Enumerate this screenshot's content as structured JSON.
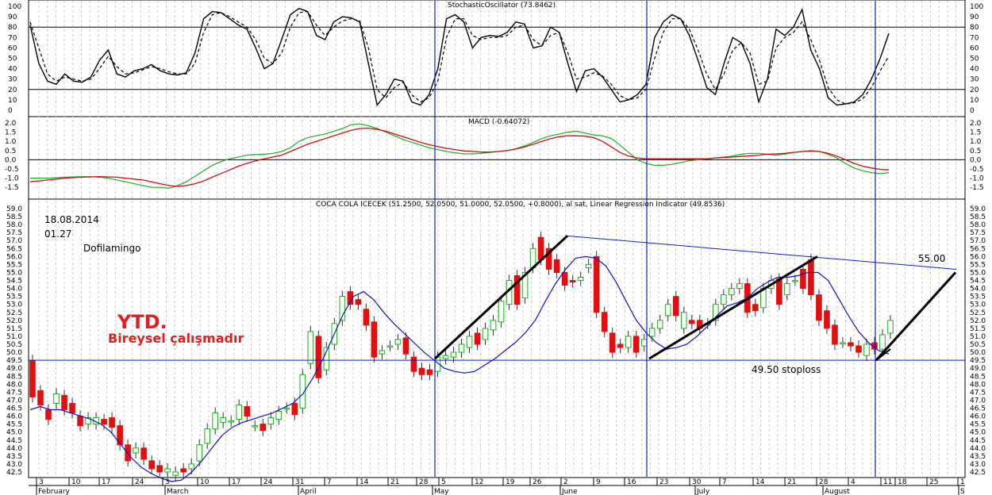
{
  "panels": {
    "stochastic": {
      "title": "StochasticOscillator (73.8462)",
      "ticks": [
        "100",
        "90",
        "80",
        "70",
        "60",
        "50",
        "40",
        "30",
        "20",
        "10",
        "0"
      ]
    },
    "macd": {
      "title": "MACD (-0.64072)",
      "ticks": [
        "2.0",
        "1.5",
        "1.0",
        "0.5",
        "0.0",
        "-0.5",
        "-1.0",
        "-1.5"
      ]
    },
    "price": {
      "title": "COCA COLA ICECEK (51.2500, 52.0500, 51.0000, 52.0500, +0.8000), al sat, Linear Regression Indicator (49.8536)",
      "ticks": [
        "59.0",
        "58.5",
        "58.0",
        "57.5",
        "57.0",
        "56.5",
        "56.0",
        "55.5",
        "55.0",
        "54.5",
        "54.0",
        "53.5",
        "53.0",
        "52.5",
        "52.0",
        "51.5",
        "51.0",
        "50.5",
        "50.0",
        "49.5",
        "49.0",
        "48.5",
        "48.0",
        "47.5",
        "47.0",
        "46.5",
        "46.0",
        "45.5",
        "45.0",
        "44.5",
        "44.0",
        "43.5",
        "43.0",
        "42.5"
      ]
    }
  },
  "annotations": {
    "date": "18.08.2014",
    "time": "01.27",
    "author": "Dofilamingo",
    "ytd": "YTD.",
    "note": "Bireysel çalışmadır",
    "target": "55.00",
    "stoploss": "49.50 stoploss"
  },
  "x_axis": {
    "day_ticks": [
      "3",
      "10",
      "17",
      "24",
      "3",
      "10",
      "17",
      "24",
      "31",
      "7",
      "14",
      "21",
      "28",
      "5",
      "12",
      "19",
      "26",
      "2",
      "9",
      "16",
      "23",
      "30",
      "7",
      "14",
      "21",
      "28",
      "4",
      "11",
      "18",
      "25",
      "1"
    ],
    "months": [
      "February",
      "March",
      "April",
      "May",
      "June",
      "July",
      "August",
      "S"
    ]
  },
  "colors": {
    "bull": "#22aa22",
    "bear": "#e01010",
    "regression": "#1010cc",
    "macd_line": "#22aa22",
    "macd_signal": "#cc1010",
    "stoch_k": "#000000",
    "stoch_d": "#000000",
    "vertical_markers": "#1020c0",
    "ytd_text": "#e02020"
  },
  "chart_data": [
    {
      "type": "line",
      "title": "StochasticOscillator (73.8462)",
      "ylim": [
        0,
        100
      ],
      "reference_lines": [
        20,
        80
      ],
      "series": [
        {
          "values": [
            82,
            45,
            28,
            25,
            35,
            28,
            27,
            32,
            48,
            58,
            35,
            32,
            38,
            40,
            44,
            38,
            35,
            34,
            36,
            55,
            88,
            95,
            94,
            88,
            82,
            78,
            60,
            40,
            45,
            68,
            92,
            98,
            95,
            72,
            68,
            85,
            90,
            89,
            85,
            45,
            5,
            15,
            30,
            28,
            8,
            5,
            15,
            40,
            88,
            92,
            85,
            60,
            70,
            72,
            71,
            75,
            85,
            83,
            60,
            62,
            80,
            75,
            45,
            18,
            38,
            40,
            32,
            20,
            8,
            10,
            15,
            25,
            70,
            85,
            92,
            88,
            72,
            48,
            22,
            15,
            45,
            70,
            65,
            45,
            8,
            30,
            78,
            72,
            80,
            97,
            58,
            40,
            12,
            5,
            6,
            8,
            15,
            30,
            50,
            74
          ]
        },
        {
          "values": [
            85,
            60,
            35,
            28,
            32,
            30,
            28,
            30,
            40,
            52,
            42,
            35,
            36,
            39,
            42,
            40,
            37,
            35,
            35,
            45,
            75,
            92,
            94,
            90,
            85,
            80,
            68,
            50,
            45,
            55,
            80,
            94,
            95,
            82,
            72,
            80,
            86,
            88,
            86,
            60,
            20,
            12,
            22,
            27,
            15,
            8,
            12,
            28,
            70,
            88,
            88,
            72,
            68,
            70,
            70,
            72,
            80,
            82,
            68,
            62,
            72,
            75,
            55,
            30,
            32,
            36,
            33,
            25,
            14,
            10,
            12,
            20,
            50,
            75,
            88,
            88,
            78,
            58,
            35,
            20,
            35,
            58,
            65,
            55,
            25,
            28,
            60,
            70,
            75,
            85,
            68,
            48,
            22,
            10,
            6,
            7,
            11,
            22,
            38,
            52
          ]
        }
      ]
    },
    {
      "type": "line",
      "title": "MACD (-0.64072)",
      "ylim": [
        -1.75,
        2.0
      ],
      "series": [
        {
          "values": [
            -1.0,
            -1.0,
            -1.0,
            -0.98,
            -0.95,
            -0.93,
            -0.92,
            -0.92,
            -0.95,
            -1.0,
            -1.1,
            -1.2,
            -1.3,
            -1.4,
            -1.5,
            -1.5,
            -1.55,
            -1.4,
            -1.2,
            -0.9,
            -0.6,
            -0.3,
            -0.1,
            0.05,
            0.15,
            0.25,
            0.28,
            0.3,
            0.35,
            0.45,
            0.65,
            1.0,
            1.2,
            1.3,
            1.4,
            1.55,
            1.7,
            1.9,
            1.95,
            1.85,
            1.7,
            1.5,
            1.3,
            1.1,
            0.95,
            0.8,
            0.65,
            0.55,
            0.45,
            0.38,
            0.32,
            0.32,
            0.35,
            0.4,
            0.45,
            0.5,
            0.6,
            0.75,
            0.95,
            1.15,
            1.3,
            1.4,
            1.5,
            1.55,
            1.45,
            1.35,
            1.3,
            1.15,
            0.8,
            0.4,
            0.0,
            -0.2,
            -0.3,
            -0.3,
            -0.25,
            -0.15,
            -0.05,
            0.0,
            0.05,
            0.1,
            0.15,
            0.2,
            0.3,
            0.35,
            0.35,
            0.3,
            0.25,
            0.3,
            0.4,
            0.45,
            0.5,
            0.45,
            0.3,
            0.1,
            -0.2,
            -0.45,
            -0.6,
            -0.7,
            -0.75,
            -0.7
          ]
        },
        {
          "values": [
            -1.2,
            -1.15,
            -1.1,
            -1.05,
            -1.0,
            -0.97,
            -0.95,
            -0.93,
            -0.92,
            -0.93,
            -0.95,
            -1.0,
            -1.05,
            -1.1,
            -1.2,
            -1.3,
            -1.4,
            -1.45,
            -1.4,
            -1.3,
            -1.15,
            -0.95,
            -0.75,
            -0.55,
            -0.35,
            -0.2,
            -0.05,
            0.05,
            0.15,
            0.25,
            0.45,
            0.65,
            0.85,
            1.0,
            1.15,
            1.3,
            1.45,
            1.6,
            1.7,
            1.72,
            1.65,
            1.55,
            1.4,
            1.25,
            1.1,
            0.95,
            0.82,
            0.72,
            0.62,
            0.55,
            0.48,
            0.45,
            0.42,
            0.42,
            0.45,
            0.5,
            0.58,
            0.7,
            0.85,
            1.0,
            1.15,
            1.25,
            1.3,
            1.3,
            1.28,
            1.2,
            1.0,
            0.7,
            0.4,
            0.2,
            0.1,
            0.05,
            0.05,
            0.05,
            0.05,
            0.05,
            0.05,
            0.05,
            0.05,
            0.1,
            0.12,
            0.15,
            0.18,
            0.22,
            0.25,
            0.3,
            0.32,
            0.35,
            0.4,
            0.45,
            0.47,
            0.45,
            0.35,
            0.2,
            0.0,
            -0.2,
            -0.35,
            -0.45,
            -0.52,
            -0.55
          ]
        }
      ]
    },
    {
      "type": "candlestick",
      "title": "COCA COLA ICECEK (51.2500, 52.0500, 51.0000, 52.0500, +0.8000), al sat, Linear Regression Indicator (49.8536)",
      "ylim": [
        42.5,
        59.0
      ],
      "horizontal_line": 49.5,
      "candles": [
        {
          "o": 49.5,
          "c": 47.2
        },
        {
          "o": 47.6,
          "c": 46.7
        },
        {
          "o": 46.4,
          "c": 45.8
        },
        {
          "o": 46.8,
          "c": 47.4
        },
        {
          "o": 47.3,
          "c": 46.4
        },
        {
          "o": 46.8,
          "c": 46.2
        },
        {
          "o": 46.0,
          "c": 45.4
        },
        {
          "o": 45.5,
          "c": 45.9
        },
        {
          "o": 45.5,
          "c": 45.9
        },
        {
          "o": 45.8,
          "c": 45.5
        },
        {
          "o": 45.9,
          "c": 45.3
        },
        {
          "o": 45.4,
          "c": 44.2
        },
        {
          "o": 44.2,
          "c": 43.2
        },
        {
          "o": 43.7,
          "c": 44.0
        },
        {
          "o": 44.0,
          "c": 43.3
        },
        {
          "o": 43.2,
          "c": 42.7
        },
        {
          "o": 42.9,
          "c": 42.5
        },
        {
          "o": 42.5,
          "c": 42.7
        },
        {
          "o": 42.3,
          "c": 42.5
        },
        {
          "o": 42.7,
          "c": 42.5
        },
        {
          "o": 42.7,
          "c": 43.0
        },
        {
          "o": 43.2,
          "c": 44.2
        },
        {
          "o": 44.3,
          "c": 45.2
        },
        {
          "o": 45.2,
          "c": 46.2
        },
        {
          "o": 45.6,
          "c": 45.9
        },
        {
          "o": 45.7,
          "c": 45.7
        },
        {
          "o": 45.8,
          "c": 46.7
        },
        {
          "o": 46.6,
          "c": 46.0
        },
        {
          "o": 45.4,
          "c": 45.4
        },
        {
          "o": 45.5,
          "c": 45.1
        },
        {
          "o": 45.5,
          "c": 45.9
        },
        {
          "o": 45.8,
          "c": 46.3
        },
        {
          "o": 46.5,
          "c": 46.5
        },
        {
          "o": 46.8,
          "c": 46.1
        },
        {
          "o": 46.5,
          "c": 48.6
        },
        {
          "o": 49.3,
          "c": 51.3
        },
        {
          "o": 51.0,
          "c": 48.4
        },
        {
          "o": 48.9,
          "c": 50.3
        },
        {
          "o": 50.5,
          "c": 51.8
        },
        {
          "o": 52.0,
          "c": 53.5
        },
        {
          "o": 53.8,
          "c": 53.0
        },
        {
          "o": 53.3,
          "c": 53.0
        },
        {
          "o": 52.7,
          "c": 51.7
        },
        {
          "o": 51.9,
          "c": 49.7
        },
        {
          "o": 49.9,
          "c": 50.1
        },
        {
          "o": 50.4,
          "c": 50.4
        },
        {
          "o": 50.5,
          "c": 50.8
        },
        {
          "o": 50.9,
          "c": 49.9
        },
        {
          "o": 49.7,
          "c": 48.8
        },
        {
          "o": 49.0,
          "c": 48.6
        },
        {
          "o": 48.9,
          "c": 48.6
        },
        {
          "o": 48.8,
          "c": 49.7
        },
        {
          "o": 49.6,
          "c": 49.8
        },
        {
          "o": 49.7,
          "c": 50.0
        },
        {
          "o": 50.0,
          "c": 50.5
        },
        {
          "o": 50.3,
          "c": 51.0
        },
        {
          "o": 51.2,
          "c": 50.5
        },
        {
          "o": 50.8,
          "c": 51.5
        },
        {
          "o": 51.4,
          "c": 52.0
        },
        {
          "o": 51.9,
          "c": 53.2
        },
        {
          "o": 53.0,
          "c": 54.5
        },
        {
          "o": 54.8,
          "c": 53.0
        },
        {
          "o": 53.4,
          "c": 55.0
        },
        {
          "o": 55.3,
          "c": 56.5
        },
        {
          "o": 57.2,
          "c": 55.8
        },
        {
          "o": 56.5,
          "c": 55.2
        },
        {
          "o": 55.8,
          "c": 55.0
        },
        {
          "o": 55.0,
          "c": 54.2
        },
        {
          "o": 54.5,
          "c": 54.4
        },
        {
          "o": 54.5,
          "c": 54.7
        },
        {
          "o": 55.3,
          "c": 55.5
        },
        {
          "o": 56.0,
          "c": 52.5
        },
        {
          "o": 52.5,
          "c": 51.3
        },
        {
          "o": 51.2,
          "c": 50.0
        },
        {
          "o": 50.5,
          "c": 50.3
        },
        {
          "o": 50.3,
          "c": 51.0
        },
        {
          "o": 51.0,
          "c": 50.0
        },
        {
          "o": 50.4,
          "c": 50.8
        },
        {
          "o": 51.0,
          "c": 51.5
        },
        {
          "o": 51.5,
          "c": 52.0
        },
        {
          "o": 52.3,
          "c": 53.0
        },
        {
          "o": 53.5,
          "c": 52.3
        },
        {
          "o": 51.5,
          "c": 52.5
        },
        {
          "o": 52.0,
          "c": 51.8
        },
        {
          "o": 52.0,
          "c": 51.5
        },
        {
          "o": 51.8,
          "c": 51.8
        },
        {
          "o": 52.0,
          "c": 53.0
        },
        {
          "o": 53.0,
          "c": 53.6
        },
        {
          "o": 53.6,
          "c": 54.0
        },
        {
          "o": 54.0,
          "c": 54.3
        },
        {
          "o": 54.3,
          "c": 52.5
        },
        {
          "o": 53.0,
          "c": 52.6
        },
        {
          "o": 52.8,
          "c": 54.0
        },
        {
          "o": 54.0,
          "c": 54.5
        },
        {
          "o": 54.6,
          "c": 53.0
        },
        {
          "o": 53.6,
          "c": 54.3
        },
        {
          "o": 54.5,
          "c": 54.5
        },
        {
          "o": 55.2,
          "c": 54.0
        },
        {
          "o": 55.8,
          "c": 53.6
        },
        {
          "o": 53.6,
          "c": 52.0
        },
        {
          "o": 52.6,
          "c": 51.5
        },
        {
          "o": 51.7,
          "c": 50.5
        },
        {
          "o": 50.6,
          "c": 50.6
        },
        {
          "o": 50.6,
          "c": 50.4
        },
        {
          "o": 50.4,
          "c": 50.0
        },
        {
          "o": 49.8,
          "c": 50.5
        },
        {
          "o": 50.6,
          "c": 50.2
        },
        {
          "o": 50.2,
          "c": 51.1
        },
        {
          "o": 51.2,
          "c": 52.0
        }
      ],
      "regression": [
        46.4,
        46.6,
        46.4,
        46.4,
        46.2,
        46.0,
        45.8,
        45.5,
        45.0,
        44.2,
        43.4,
        42.8,
        42.4,
        42.1,
        41.9,
        42.0,
        42.5,
        43.2,
        44.0,
        44.8,
        45.3,
        45.6,
        45.8,
        46.0,
        46.2,
        46.5,
        46.8,
        47.4,
        48.4,
        49.6,
        51.0,
        52.4,
        53.5,
        53.8,
        53.3,
        52.5,
        51.8,
        51.2,
        50.6,
        50.0,
        49.5,
        49.0,
        48.8,
        48.7,
        48.8,
        49.2,
        49.6,
        50.1,
        50.6,
        51.2,
        52.0,
        53.2,
        54.3,
        55.2,
        55.9,
        56.0,
        55.9,
        55.4,
        54.4,
        53.2,
        52.0,
        51.2,
        50.6,
        50.2,
        50.3,
        50.5,
        51.0,
        51.6,
        52.3,
        52.9,
        53.1,
        53.4,
        54.0,
        54.4,
        54.7,
        54.7,
        54.8,
        55.0,
        55.0,
        54.5,
        53.4,
        52.3,
        51.3,
        50.6,
        50.1,
        49.9
      ],
      "trendlines": [
        {
          "name": "resistance",
          "from": [
            57.3
          ],
          "to": [
            55.2
          ]
        },
        {
          "name": "support",
          "level": 49.5
        }
      ],
      "labels": {
        "target": "55.00",
        "stoploss": "49.50 stoploss"
      }
    }
  ]
}
